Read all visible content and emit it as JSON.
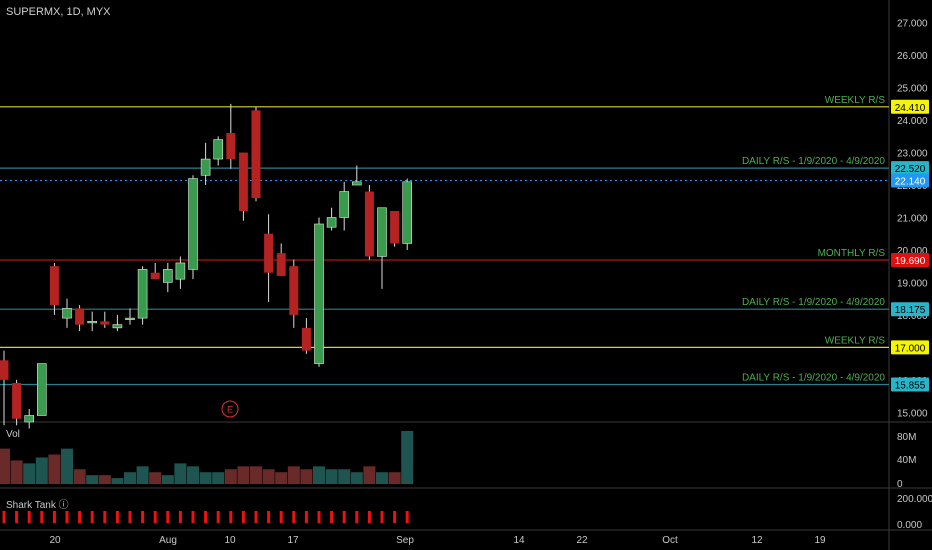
{
  "header": {
    "symbol": "SUPERMX, 1D, MYX"
  },
  "volume_pane": {
    "label": "Vol",
    "ticks": [
      "80M",
      "40M",
      "0"
    ]
  },
  "shark_pane": {
    "label": "Shark Tank ⓘ",
    "ticks": [
      "200.000",
      "0.000"
    ]
  },
  "earnings_marker": {
    "label": "E"
  },
  "colors": {
    "up": "#3a9b4f",
    "down": "#b52222",
    "up_vol": "#1e5550",
    "down_vol": "#6b2a2a"
  },
  "chart_data": {
    "type": "candlestick",
    "price_axis": {
      "ticks": [
        15,
        16,
        17,
        18,
        19,
        20,
        21,
        22,
        23,
        24,
        25,
        26,
        27
      ],
      "tick_labels": [
        "15.000",
        "16.000",
        "17.000",
        "18.000",
        "19.000",
        "20.000",
        "21.000",
        "22.000",
        "23.000",
        "24.000",
        "25.000",
        "26.000",
        "27.000"
      ],
      "range": [
        14.7,
        27.7
      ]
    },
    "time_axis": {
      "labels": [
        "20",
        "Aug",
        "10",
        "17",
        "Sep",
        "14",
        "22",
        "Oct",
        "12",
        "19"
      ]
    },
    "candles": [
      {
        "o": 16.6,
        "h": 16.9,
        "l": 14.6,
        "c": 16.0,
        "v": 60
      },
      {
        "o": 15.9,
        "h": 16.0,
        "l": 14.6,
        "c": 14.8,
        "v": 40
      },
      {
        "o": 14.7,
        "h": 15.1,
        "l": 14.5,
        "c": 14.9,
        "v": 35
      },
      {
        "o": 14.9,
        "h": 16.5,
        "l": 14.9,
        "c": 16.5,
        "v": 45
      },
      {
        "o": 19.5,
        "h": 19.6,
        "l": 18.0,
        "c": 18.3,
        "v": 50
      },
      {
        "o": 17.9,
        "h": 18.5,
        "l": 17.6,
        "c": 18.2,
        "v": 60
      },
      {
        "o": 18.2,
        "h": 18.3,
        "l": 17.5,
        "c": 17.7,
        "v": 25
      },
      {
        "o": 17.8,
        "h": 18.1,
        "l": 17.5,
        "c": 17.8,
        "v": 15
      },
      {
        "o": 17.8,
        "h": 18.1,
        "l": 17.6,
        "c": 17.7,
        "v": 15
      },
      {
        "o": 17.6,
        "h": 18.0,
        "l": 17.5,
        "c": 17.7,
        "v": 10
      },
      {
        "o": 17.9,
        "h": 18.2,
        "l": 17.7,
        "c": 17.9,
        "v": 20
      },
      {
        "o": 17.9,
        "h": 19.5,
        "l": 17.7,
        "c": 19.4,
        "v": 30
      },
      {
        "o": 19.3,
        "h": 19.6,
        "l": 19.1,
        "c": 19.1,
        "v": 20
      },
      {
        "o": 19.0,
        "h": 19.6,
        "l": 18.7,
        "c": 19.4,
        "v": 15
      },
      {
        "o": 19.1,
        "h": 19.8,
        "l": 18.8,
        "c": 19.6,
        "v": 35
      },
      {
        "o": 19.4,
        "h": 22.3,
        "l": 19.1,
        "c": 22.2,
        "v": 30
      },
      {
        "o": 22.3,
        "h": 23.3,
        "l": 22.0,
        "c": 22.8,
        "v": 20
      },
      {
        "o": 22.8,
        "h": 23.5,
        "l": 22.6,
        "c": 23.4,
        "v": 20
      },
      {
        "o": 23.6,
        "h": 24.5,
        "l": 22.5,
        "c": 22.8,
        "v": 25
      },
      {
        "o": 23.0,
        "h": 23.0,
        "l": 20.9,
        "c": 21.2,
        "v": 30
      },
      {
        "o": 24.3,
        "h": 24.4,
        "l": 21.5,
        "c": 21.6,
        "v": 30
      },
      {
        "o": 20.5,
        "h": 21.1,
        "l": 18.4,
        "c": 19.3,
        "v": 25
      },
      {
        "o": 19.9,
        "h": 20.2,
        "l": 19.2,
        "c": 19.2,
        "v": 20
      },
      {
        "o": 19.5,
        "h": 19.7,
        "l": 17.6,
        "c": 18.0,
        "v": 30
      },
      {
        "o": 17.6,
        "h": 17.9,
        "l": 16.8,
        "c": 16.9,
        "v": 25
      },
      {
        "o": 16.5,
        "h": 21.0,
        "l": 16.4,
        "c": 20.8,
        "v": 30
      },
      {
        "o": 20.7,
        "h": 21.3,
        "l": 20.6,
        "c": 21.0,
        "v": 25
      },
      {
        "o": 21.0,
        "h": 22.1,
        "l": 20.6,
        "c": 21.8,
        "v": 25
      },
      {
        "o": 22.0,
        "h": 22.6,
        "l": 22.0,
        "c": 22.1,
        "v": 20
      },
      {
        "o": 21.8,
        "h": 22.0,
        "l": 19.7,
        "c": 19.8,
        "v": 30
      },
      {
        "o": 19.8,
        "h": 21.3,
        "l": 18.8,
        "c": 21.3,
        "v": 20
      },
      {
        "o": 21.2,
        "h": 21.2,
        "l": 20.1,
        "c": 20.2,
        "v": 20
      },
      {
        "o": 20.2,
        "h": 22.2,
        "l": 20.0,
        "c": 22.1,
        "v": 90
      }
    ],
    "levels": [
      {
        "price": 24.41,
        "label": "WEEKLY R/S",
        "tag": "24.410",
        "color": "#d4d42a",
        "tag_bg": "#f5f500",
        "tag_fg": "#000"
      },
      {
        "price": 22.52,
        "label": "DAILY R/S - 1/9/2020 - 4/9/2020",
        "tag": "22.520",
        "color": "#2a7f8f",
        "tag_bg": "#29b5c9",
        "tag_fg": "#000"
      },
      {
        "price": 19.69,
        "label": "MONTHLY R/S",
        "tag": "19.690",
        "color": "#b01818",
        "tag_bg": "#e01010",
        "tag_fg": "#fff"
      },
      {
        "price": 18.175,
        "label": "DAILY R/S - 1/9/2020 - 4/9/2020",
        "tag": "18.175",
        "color": "#2a7f8f",
        "tag_bg": "#29b5c9",
        "tag_fg": "#000"
      },
      {
        "price": 17.0,
        "label": "WEEKLY R/S",
        "tag": "17.000",
        "color": "#d4d42a",
        "tag_bg": "#f5f500",
        "tag_fg": "#000"
      },
      {
        "price": 15.855,
        "label": "DAILY R/S - 1/9/2020 - 4/9/2020",
        "tag": "15.855",
        "color": "#2a7f8f",
        "tag_bg": "#29b5c9",
        "tag_fg": "#000"
      }
    ],
    "last_price": {
      "price": 22.14,
      "tag": "22.140",
      "tag_bg": "#2196f3"
    },
    "level_label_color": "#4caf50"
  }
}
